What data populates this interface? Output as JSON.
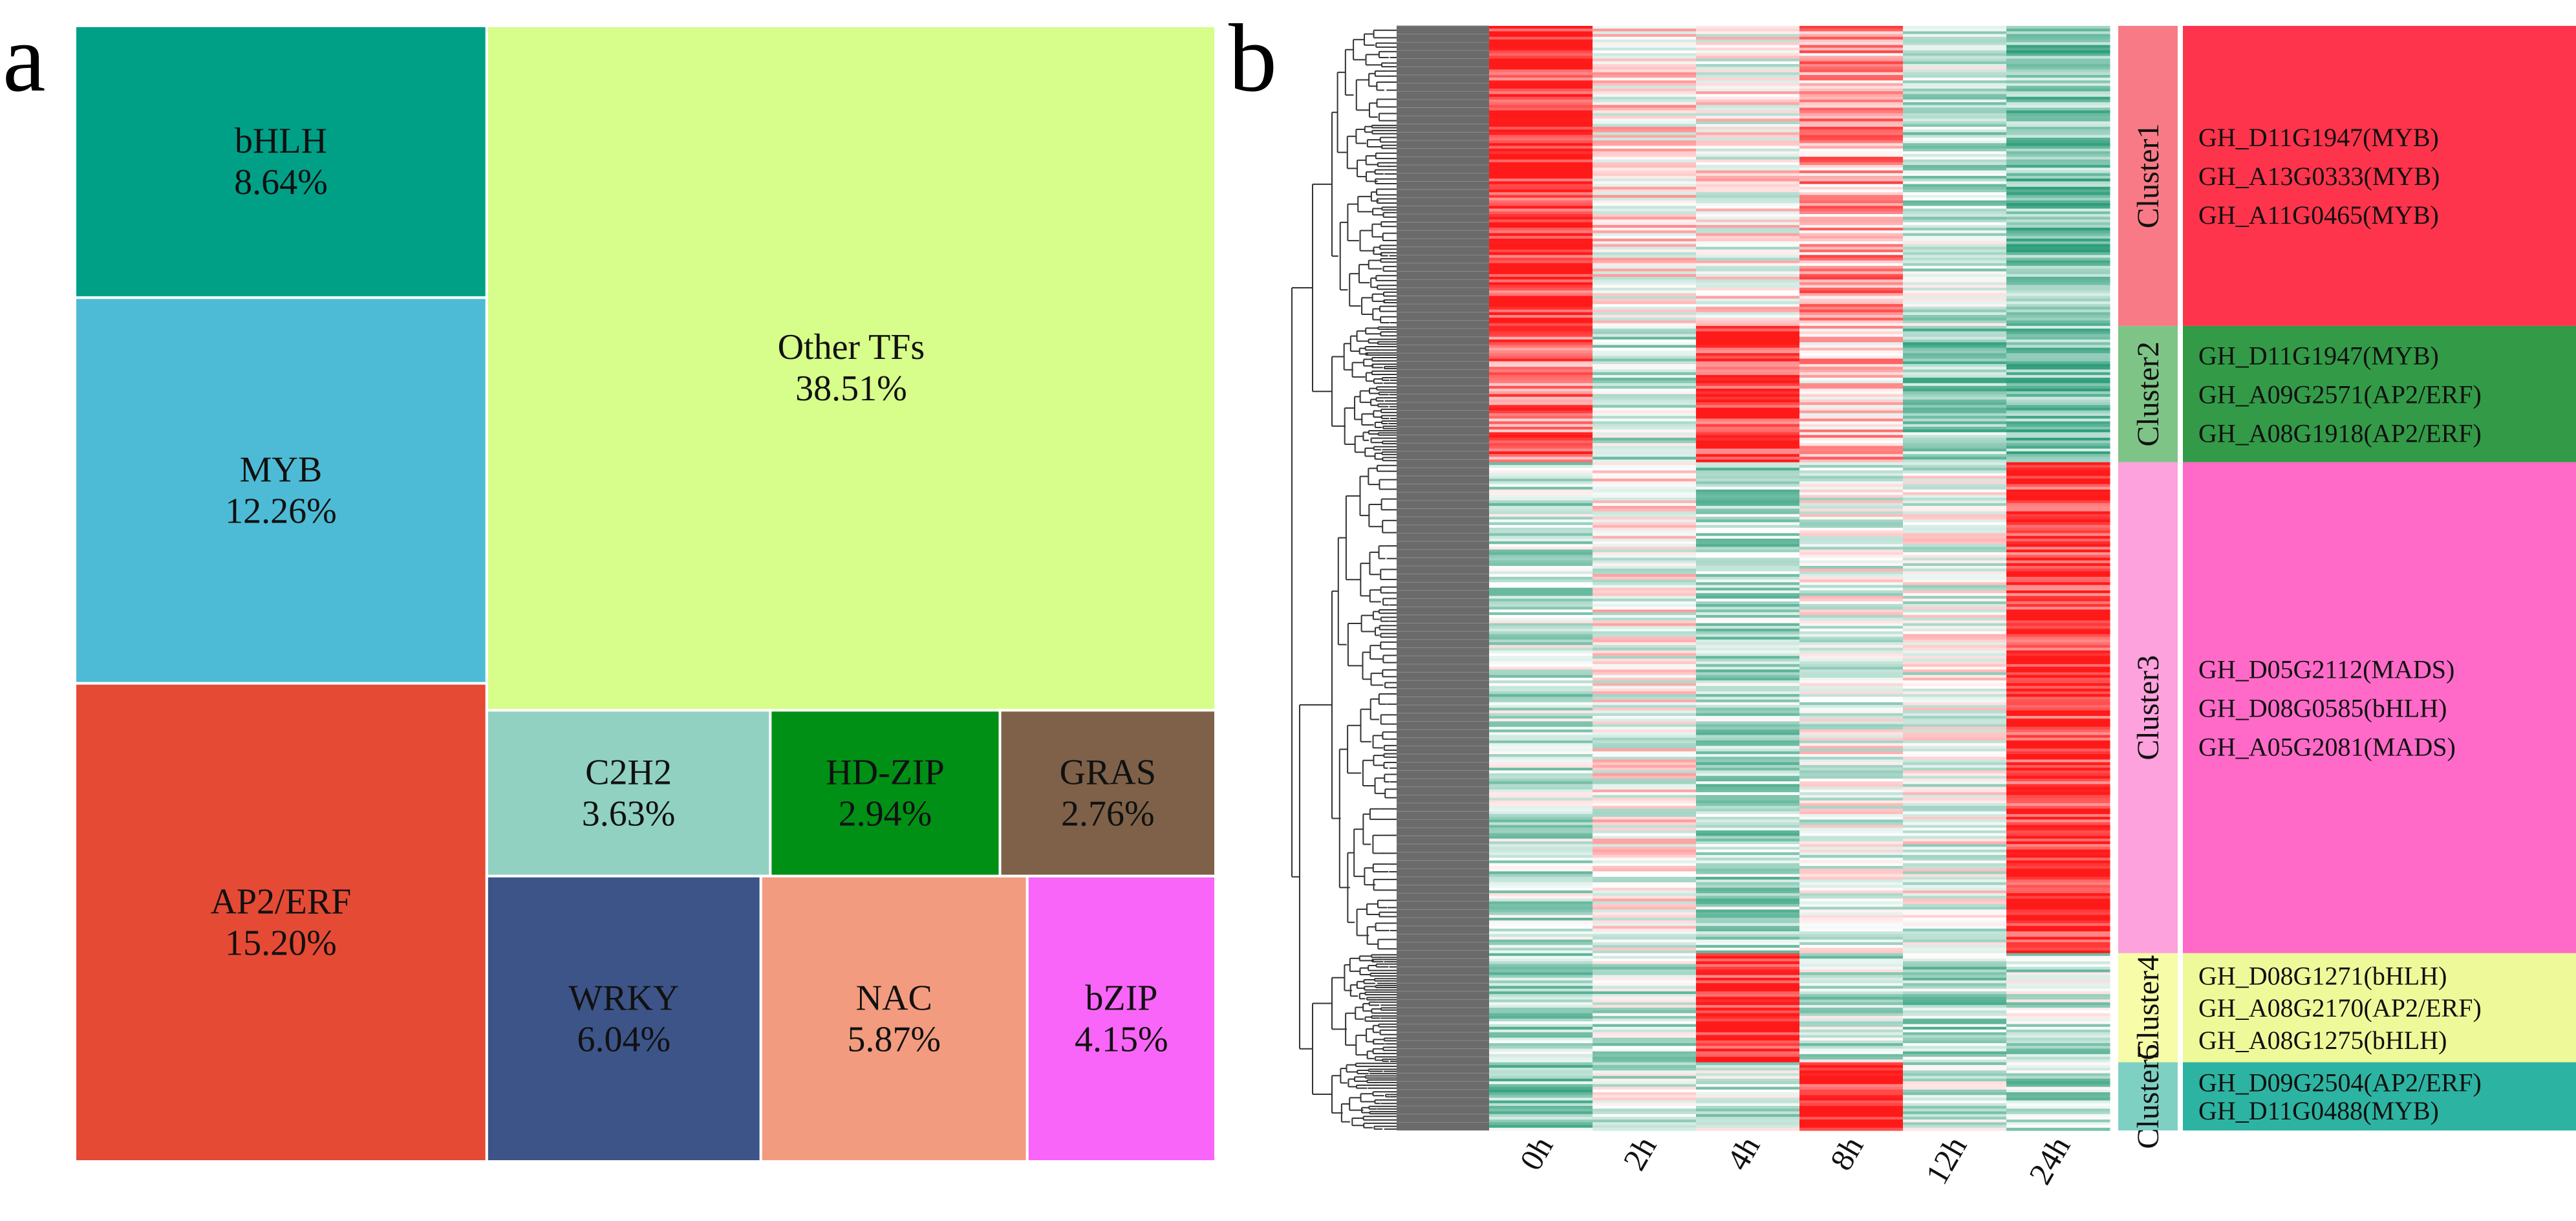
{
  "panels": {
    "a": "a",
    "b": "b"
  },
  "colors": {
    "heat_low": "#2e9e7a",
    "heat_mid": "#ffffff",
    "heat_high": "#ff1a1a",
    "dendrogram": "#333333",
    "gene_bar": "#6b6b6b"
  },
  "chart_data": [
    {
      "type": "treemap",
      "title": "",
      "unit": "%",
      "items": [
        {
          "name": "Other TFs",
          "value": 38.51,
          "label": "38.51%",
          "color": "#d7fd8a"
        },
        {
          "name": "AP2/ERF",
          "value": 15.2,
          "label": "15.20%",
          "color": "#e54a35"
        },
        {
          "name": "MYB",
          "value": 12.26,
          "label": "12.26%",
          "color": "#4dbbd5"
        },
        {
          "name": "bHLH",
          "value": 8.64,
          "label": "8.64%",
          "color": "#00a087"
        },
        {
          "name": "WRKY",
          "value": 6.04,
          "label": "6.04%",
          "color": "#3c5488"
        },
        {
          "name": "NAC",
          "value": 5.87,
          "label": "5.87%",
          "color": "#f39b7f"
        },
        {
          "name": "bZIP",
          "value": 4.15,
          "label": "4.15%",
          "color": "#f865f8"
        },
        {
          "name": "C2H2",
          "value": 3.63,
          "label": "3.63%",
          "color": "#91d1c2"
        },
        {
          "name": "HD-ZIP",
          "value": 2.94,
          "label": "2.94%",
          "color": "#009016"
        },
        {
          "name": "GRAS",
          "value": 2.76,
          "label": "2.76%",
          "color": "#7e6148"
        }
      ]
    },
    {
      "type": "heatmap",
      "title": "",
      "columns": [
        "0h",
        "2h",
        "4h",
        "8h",
        "12h",
        "24h"
      ],
      "color_scale": [
        "low (green)",
        "mid (white)",
        "high (red)"
      ],
      "clusters": [
        {
          "name": "Cluster1",
          "rows": 110,
          "band_color": "#f87a86",
          "box_color": "#fe344c",
          "genes": [
            "GH_D11G1947(MYB)",
            "GH_A13G0333(MYB)",
            "GH_A11G0465(MYB)"
          ],
          "mean_pattern": [
            0.9,
            0.1,
            0.0,
            0.4,
            -0.3,
            -0.6
          ]
        },
        {
          "name": "Cluster2",
          "rows": 50,
          "band_color": "#7ec486",
          "box_color": "#339a47",
          "genes": [
            "GH_D11G1947(MYB)",
            "GH_A09G2571(AP2/ERF)",
            "GH_A08G1918(AP2/ERF)"
          ],
          "mean_pattern": [
            0.6,
            -0.3,
            0.9,
            0.3,
            -0.5,
            -0.6
          ]
        },
        {
          "name": "Cluster3",
          "rows": 180,
          "band_color": "#fda2dd",
          "box_color": "#ff6ac8",
          "genes": [
            "GH_D05G2112(MADS)",
            "GH_D08G0585(bHLH)",
            "GH_A05G2081(MADS)"
          ],
          "mean_pattern": [
            -0.3,
            0.0,
            -0.4,
            -0.1,
            -0.1,
            0.9
          ]
        },
        {
          "name": "Cluster4",
          "rows": 40,
          "band_color": "#f6fca8",
          "box_color": "#eef99a",
          "genes": [
            "GH_D08G1271(bHLH)",
            "GH_A08G2170(AP2/ERF)",
            "GH_A08G1275(bHLH)"
          ],
          "mean_pattern": [
            -0.4,
            -0.3,
            0.95,
            -0.3,
            -0.4,
            -0.3
          ]
        },
        {
          "name": "Cluster5",
          "rows": 25,
          "band_color": "#7ed0c3",
          "box_color": "#2db3a1",
          "genes": [
            "GH_D09G2504(AP2/ERF)",
            "GH_D11G0488(MYB)"
          ],
          "mean_pattern": [
            -0.5,
            -0.2,
            -0.3,
            0.95,
            -0.3,
            -0.4
          ]
        }
      ]
    }
  ]
}
